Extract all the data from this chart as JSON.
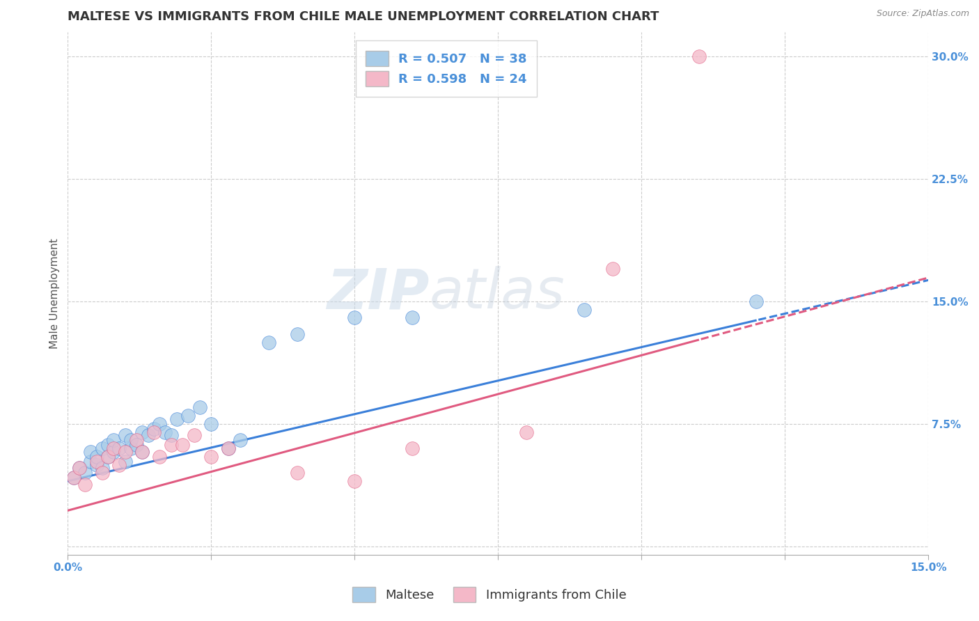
{
  "title": "MALTESE VS IMMIGRANTS FROM CHILE MALE UNEMPLOYMENT CORRELATION CHART",
  "source": "Source: ZipAtlas.com",
  "ylabel": "Male Unemployment",
  "xlim": [
    0.0,
    0.15
  ],
  "ylim": [
    -0.005,
    0.315
  ],
  "xticks": [
    0.0,
    0.025,
    0.05,
    0.075,
    0.1,
    0.125,
    0.15
  ],
  "xtick_labels": [
    "0.0%",
    "",
    "",
    "",
    "",
    "",
    "15.0%"
  ],
  "yticks": [
    0.0,
    0.075,
    0.15,
    0.225,
    0.3
  ],
  "ytick_labels": [
    "",
    "7.5%",
    "15.0%",
    "22.5%",
    "30.0%"
  ],
  "blue_R": 0.507,
  "blue_N": 38,
  "pink_R": 0.598,
  "pink_N": 24,
  "blue_color": "#a8cce8",
  "pink_color": "#f4b8c8",
  "blue_line_color": "#3a7fd9",
  "pink_line_color": "#e05a80",
  "legend_label_blue": "Maltese",
  "legend_label_pink": "Immigrants from Chile",
  "grid_color": "#cccccc",
  "background_color": "#ffffff",
  "title_color": "#333333",
  "axis_label_color": "#555555",
  "tick_label_color": "#4a90d9",
  "title_fontsize": 13,
  "axis_label_fontsize": 11,
  "tick_fontsize": 11,
  "legend_fontsize": 13,
  "blue_scatter_x": [
    0.001,
    0.002,
    0.003,
    0.004,
    0.004,
    0.005,
    0.005,
    0.006,
    0.006,
    0.007,
    0.007,
    0.008,
    0.008,
    0.009,
    0.01,
    0.01,
    0.011,
    0.011,
    0.012,
    0.013,
    0.013,
    0.014,
    0.015,
    0.016,
    0.017,
    0.018,
    0.019,
    0.021,
    0.023,
    0.025,
    0.028,
    0.03,
    0.035,
    0.04,
    0.05,
    0.06,
    0.09,
    0.12
  ],
  "blue_scatter_y": [
    0.042,
    0.048,
    0.045,
    0.052,
    0.058,
    0.05,
    0.055,
    0.06,
    0.048,
    0.055,
    0.062,
    0.058,
    0.065,
    0.06,
    0.052,
    0.068,
    0.06,
    0.065,
    0.062,
    0.058,
    0.07,
    0.068,
    0.072,
    0.075,
    0.07,
    0.068,
    0.078,
    0.08,
    0.085,
    0.075,
    0.06,
    0.065,
    0.125,
    0.13,
    0.14,
    0.14,
    0.145,
    0.15
  ],
  "pink_scatter_x": [
    0.001,
    0.002,
    0.003,
    0.005,
    0.006,
    0.007,
    0.008,
    0.009,
    0.01,
    0.012,
    0.013,
    0.015,
    0.016,
    0.018,
    0.02,
    0.022,
    0.025,
    0.028,
    0.04,
    0.05,
    0.06,
    0.08,
    0.095,
    0.11
  ],
  "pink_scatter_y": [
    0.042,
    0.048,
    0.038,
    0.052,
    0.045,
    0.055,
    0.06,
    0.05,
    0.058,
    0.065,
    0.058,
    0.07,
    0.055,
    0.062,
    0.062,
    0.068,
    0.055,
    0.06,
    0.045,
    0.04,
    0.06,
    0.07,
    0.17,
    0.3
  ]
}
